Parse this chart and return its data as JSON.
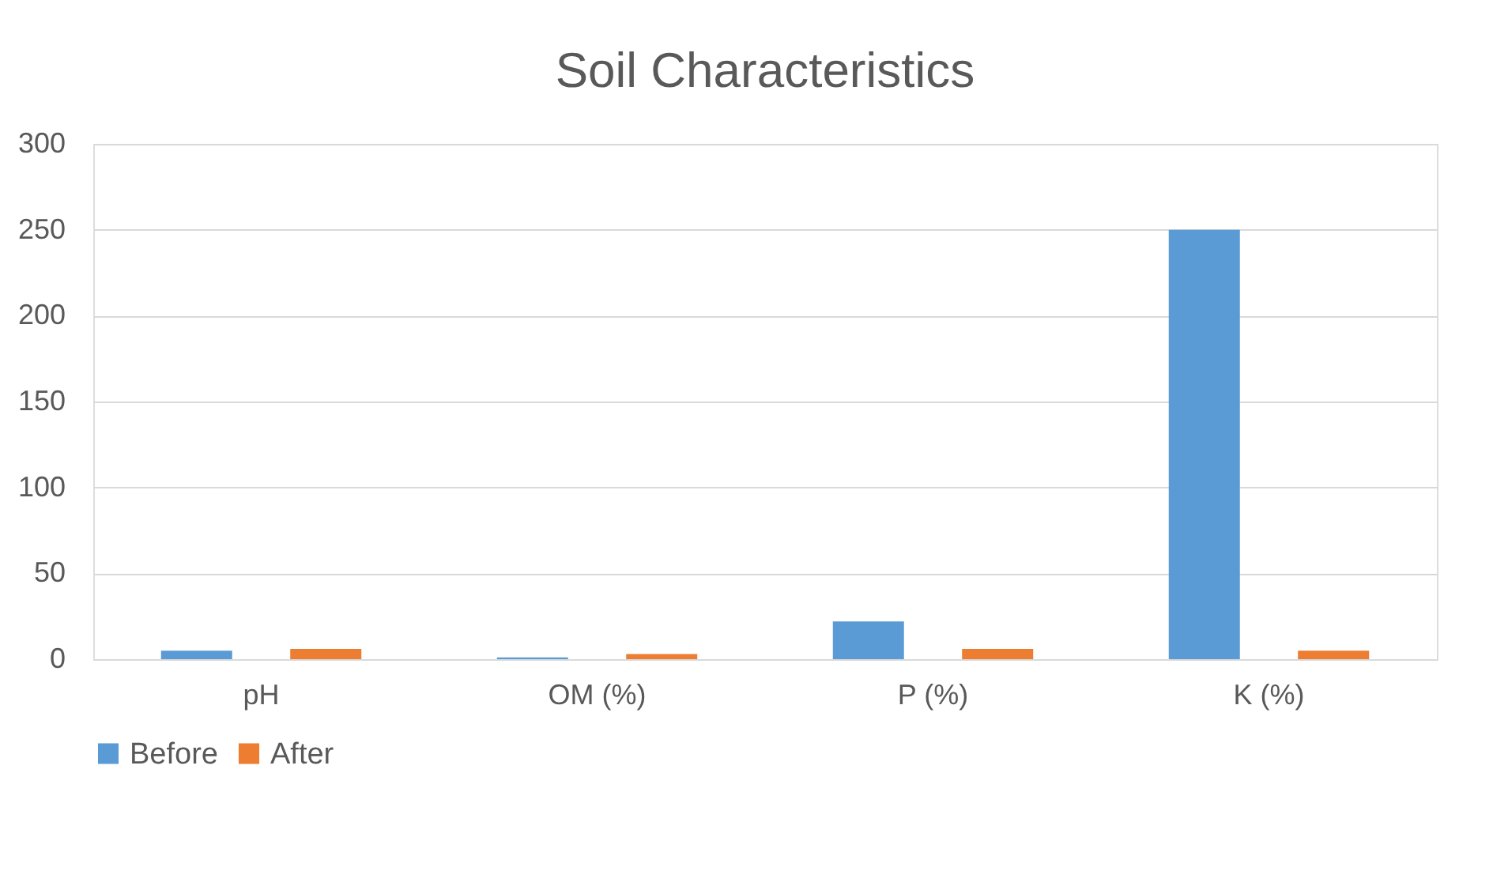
{
  "chart_data": {
    "type": "bar",
    "title": "Soil Characteristics",
    "categories": [
      "pH",
      "OM (%)",
      "P (%)",
      "K (%)"
    ],
    "series": [
      {
        "name": "Before",
        "color": "#5b9bd5",
        "values": [
          5,
          1,
          22,
          250
        ]
      },
      {
        "name": "After",
        "color": "#ed7d31",
        "values": [
          6,
          3,
          6,
          5
        ]
      }
    ],
    "ylim": [
      0,
      300
    ],
    "yticks": [
      0,
      50,
      100,
      150,
      200,
      250,
      300
    ],
    "grid": "y",
    "legend": "bottom"
  }
}
